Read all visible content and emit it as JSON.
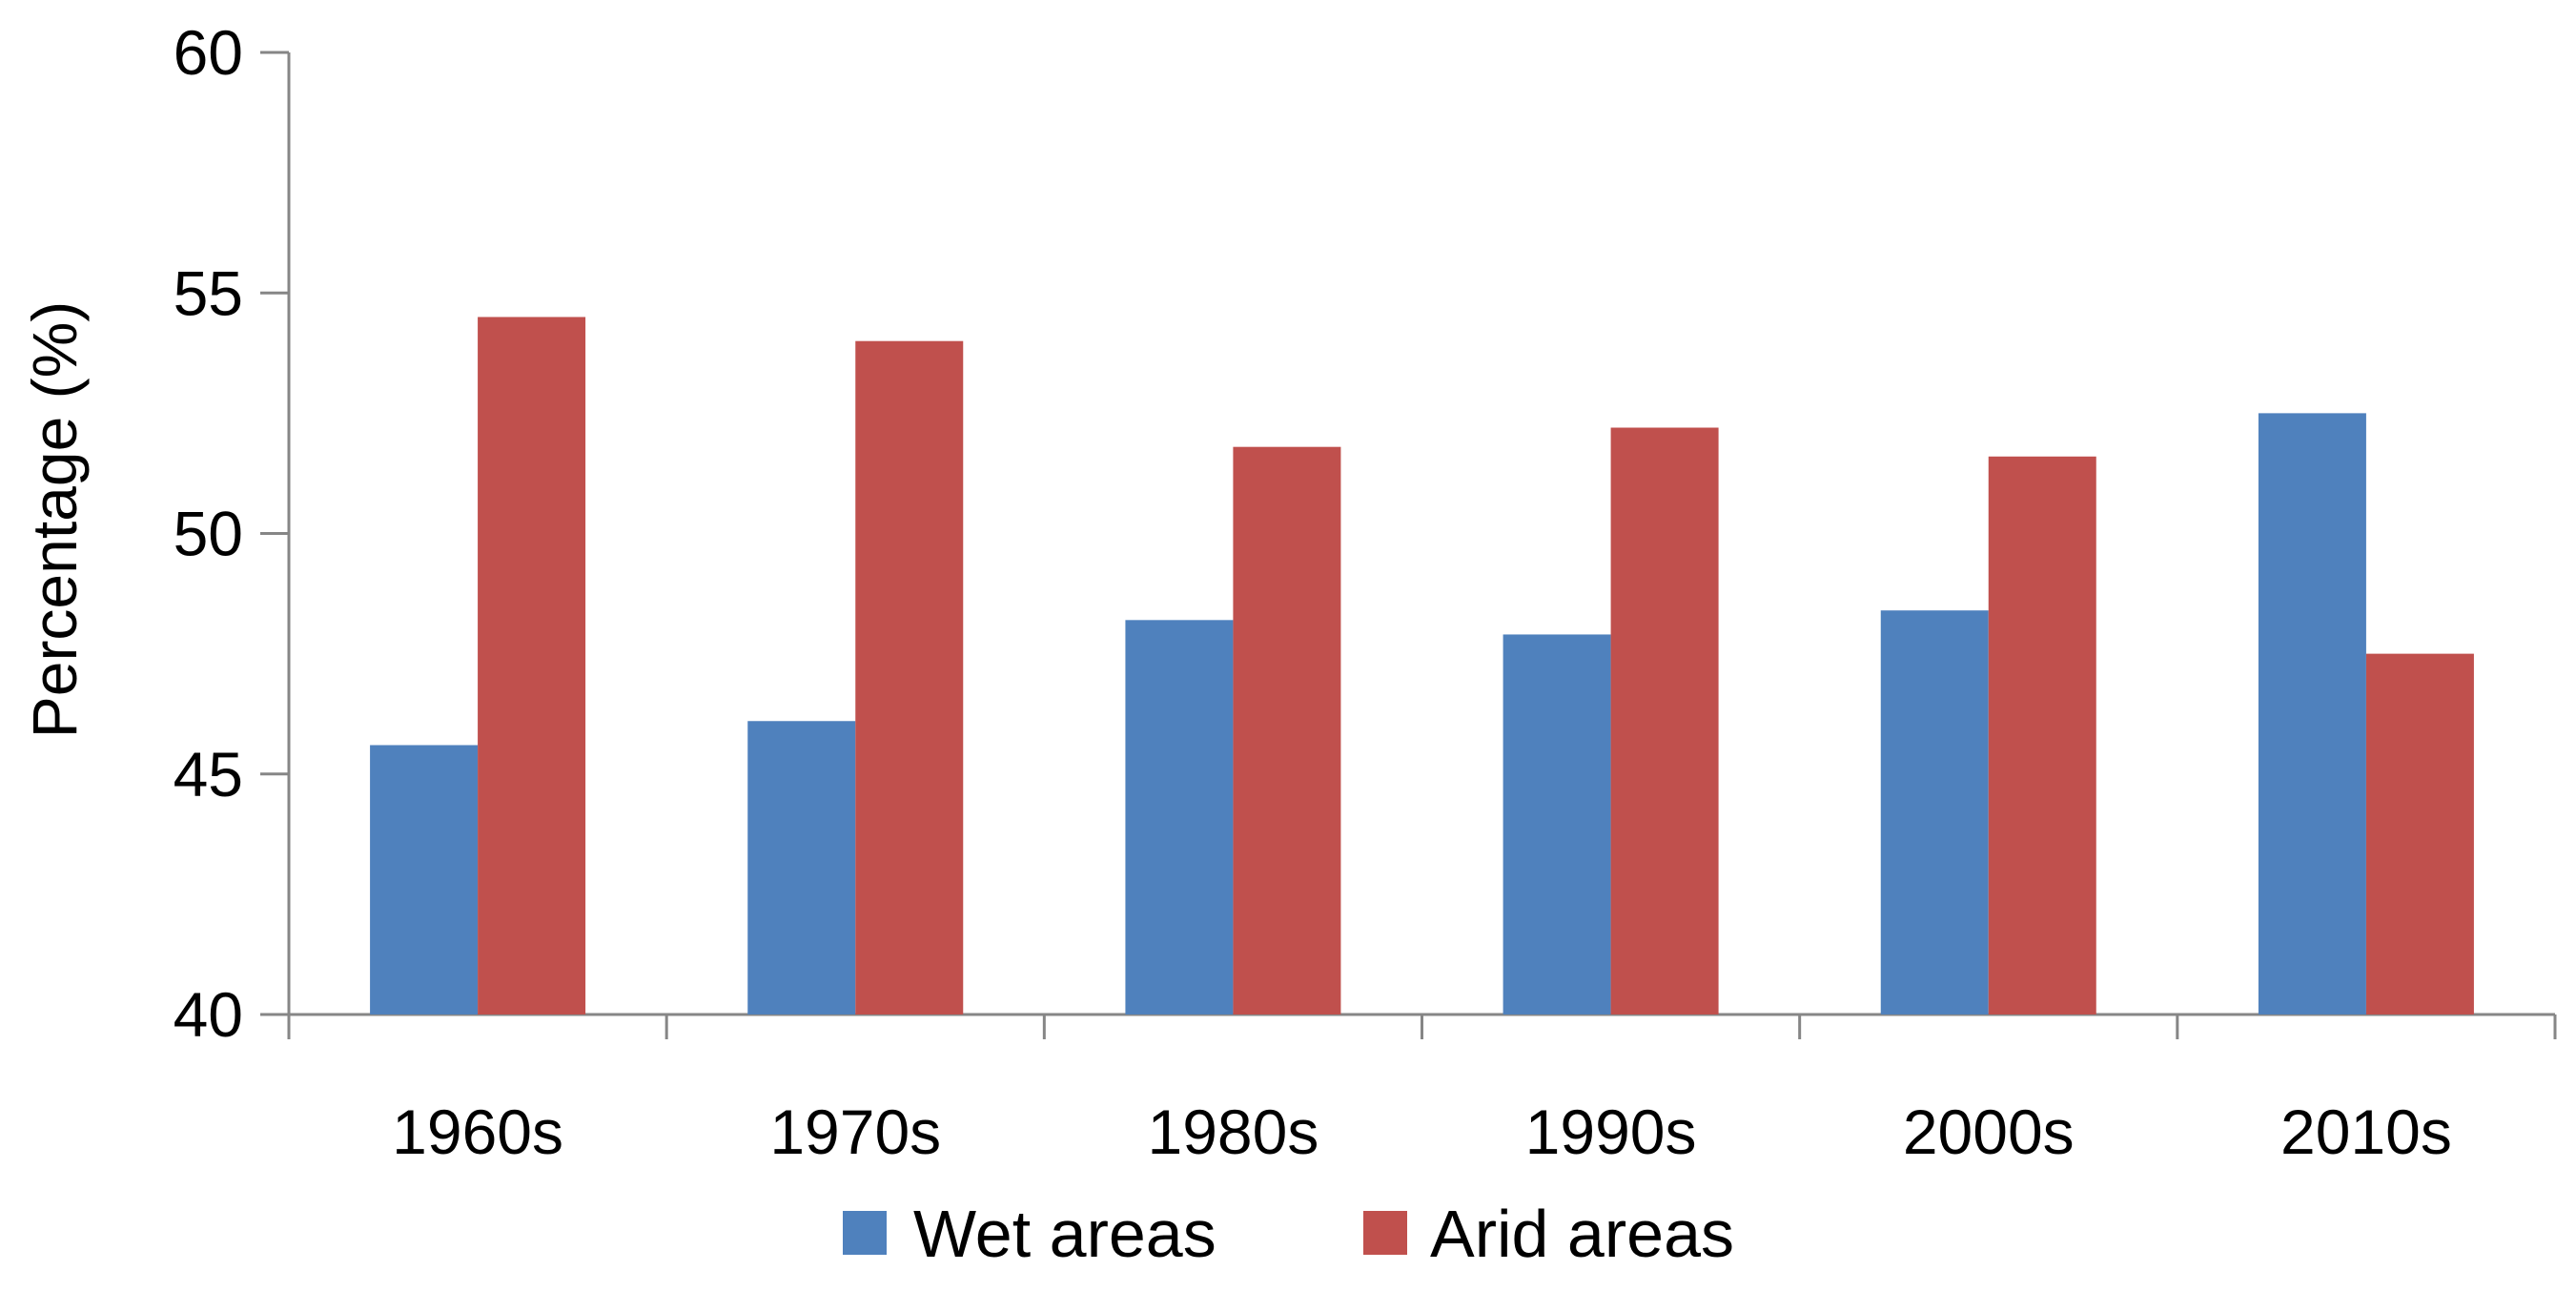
{
  "chart_data": {
    "type": "bar",
    "title": "",
    "xlabel": "",
    "ylabel": "Percentage  (%)",
    "categories": [
      "1960s",
      "1970s",
      "1980s",
      "1990s",
      "2000s",
      "2010s"
    ],
    "series": [
      {
        "name": "Wet areas",
        "color": "#4F81BD",
        "values": [
          45.6,
          46.1,
          48.2,
          47.9,
          48.4,
          52.5
        ]
      },
      {
        "name": "Arid areas",
        "color": "#C0504D",
        "values": [
          54.5,
          54.0,
          51.8,
          52.2,
          51.6,
          47.5
        ]
      }
    ],
    "ylim": [
      40,
      60
    ],
    "yticks": [
      "40",
      "45",
      "50",
      "55",
      "60"
    ],
    "grid": false,
    "legend": "bottom"
  }
}
